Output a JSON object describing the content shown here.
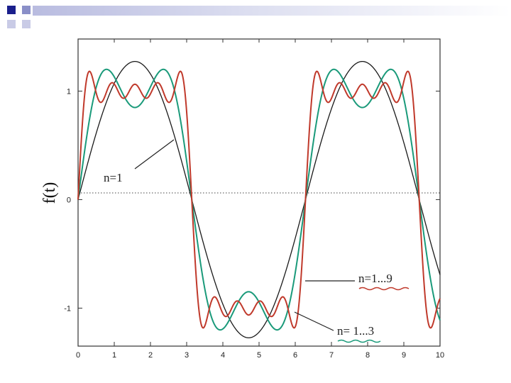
{
  "slide": {
    "banner_colors": [
      "#1a1f8c",
      "#8a8fc8",
      "#c9cbe6"
    ]
  },
  "chart_data": {
    "type": "line",
    "title": "",
    "xlabel": "",
    "ylabel": "f(t)",
    "xlim": [
      0,
      10
    ],
    "ylim": [
      -1.35,
      1.48
    ],
    "x_ticks": [
      0,
      1,
      2,
      3,
      4,
      5,
      6,
      7,
      8,
      9,
      10
    ],
    "y_ticks": [
      -1,
      0,
      1
    ],
    "period": 6.2832,
    "grid": false,
    "zero_line": "dotted",
    "series": [
      {
        "name": "n=1",
        "color": "#1a1a1a",
        "harmonics": [
          1
        ]
      },
      {
        "name": "n=1...3",
        "color": "#1a9a7a",
        "harmonics": [
          1,
          3
        ]
      },
      {
        "name": "n=1...9",
        "color": "#c0392b",
        "harmonics": [
          1,
          3,
          5,
          7,
          9
        ]
      }
    ],
    "annotations": [
      {
        "text": "n=1",
        "target_series": "n=1",
        "at": [
          2.0,
          0.75
        ]
      },
      {
        "text": "n=1...9",
        "target_series": "n=1...9",
        "at": [
          8.0,
          -0.85
        ]
      },
      {
        "text": "n= 1...3",
        "target_series": "n=1...3",
        "at": [
          6.6,
          -1.25
        ]
      }
    ]
  }
}
